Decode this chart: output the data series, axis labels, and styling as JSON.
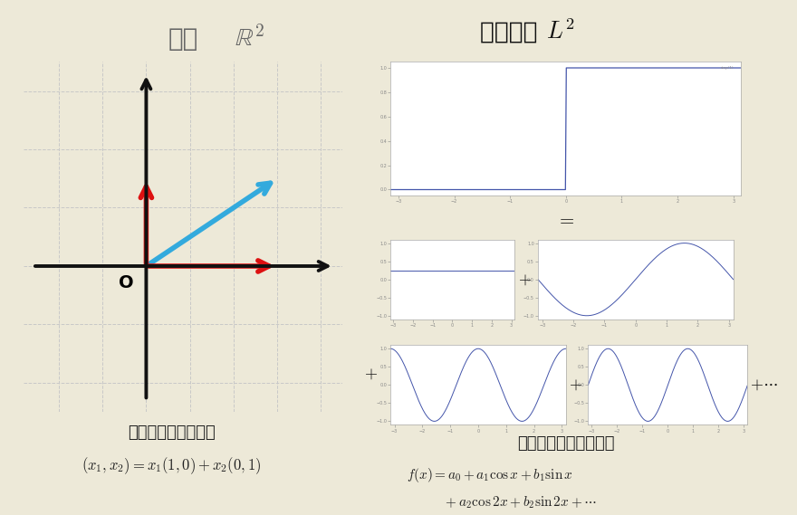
{
  "bg_color": "#ede9d8",
  "left_title_jp": "平面",
  "left_title_math": "$\\mathbb{R}^2$",
  "right_title_jp": "関数空間 ",
  "right_title_math": "$L^2$",
  "left_subtitle": "各成分に分解できる",
  "left_formula": "$(x_1, x_2) = x_1(1,0) + x_2(0,1)$",
  "right_subtitle": "各成分に分解できる？",
  "right_formula1": "$f(x) = a_0 + a_1\\cos x + b_1\\sin x$",
  "right_formula2": "$\\quad\\quad\\quad + a_2\\cos 2x + b_2\\sin 2x + \\cdots$",
  "grid_color": "#c8c8c8",
  "axis_color": "#111111",
  "red_color": "#dd1111",
  "blue_color": "#33aadd",
  "plot_line_color": "#4455aa",
  "origin_label": "O"
}
